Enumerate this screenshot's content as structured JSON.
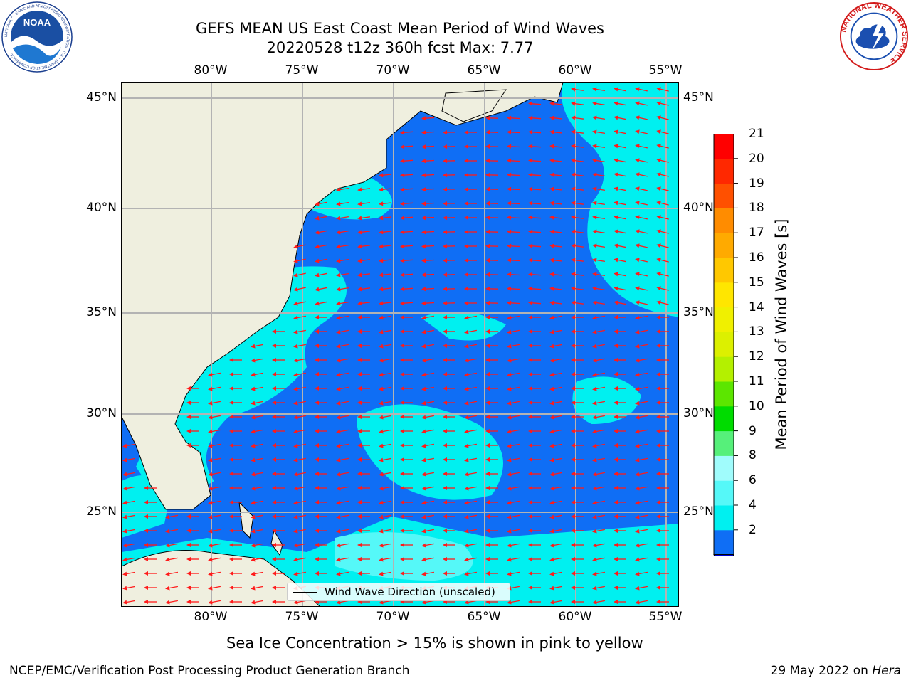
{
  "title": "GEFS MEAN US East Coast Mean Period of Wind Waves",
  "subtitle": "20220528 t12z 360h fcst   Max: 7.77",
  "map": {
    "lon_labels": [
      "80°W",
      "75°W",
      "70°W",
      "65°W",
      "60°W",
      "55°W"
    ],
    "lat_labels": [
      "45°N",
      "40°N",
      "35°N",
      "30°N",
      "25°N"
    ],
    "colors": {
      "land": "#efefdf",
      "ocean_dark": "#0f6ef5",
      "ocean_light": "#00f0f0",
      "ocean_pale": "#55f8f8",
      "arrow": "#ff1a1a",
      "grid": "#b3b3b3"
    },
    "legend": "Wind Wave Direction (unscaled)"
  },
  "colorbar": {
    "label": "Mean Period of Wind Waves [s]",
    "ticks": [
      "21",
      "20",
      "19",
      "18",
      "17",
      "16",
      "15",
      "14",
      "13",
      "12",
      "11",
      "10",
      "9",
      "8",
      "6",
      "4",
      "2"
    ],
    "colors_bottom_to_top": [
      "#0f6ef5",
      "#00f0f0",
      "#55f8f8",
      "#a0fcfc",
      "#56f07a",
      "#00dc00",
      "#5ce600",
      "#b4f000",
      "#dcf000",
      "#f0f000",
      "#ffe600",
      "#ffc800",
      "#ffaa00",
      "#ff8c00",
      "#ff5000",
      "#ff2800",
      "#ff0000"
    ],
    "under_color": "#0000f0"
  },
  "ice_note": "Sea Ice Concentration > 15% is shown in pink to yellow",
  "footer": {
    "left": "NCEP/EMC/Verification Post Processing Product Generation Branch",
    "date": "29 May 2022 on ",
    "machine": "Hera"
  },
  "logos": {
    "noaa": "NOAA",
    "noaa_ring": "NATIONAL OCEANIC AND ATMOSPHERIC ADMINISTRATION · U.S. DEPARTMENT OF COMMERCE",
    "nws_ring": "NATIONAL WEATHER SERVICE"
  }
}
